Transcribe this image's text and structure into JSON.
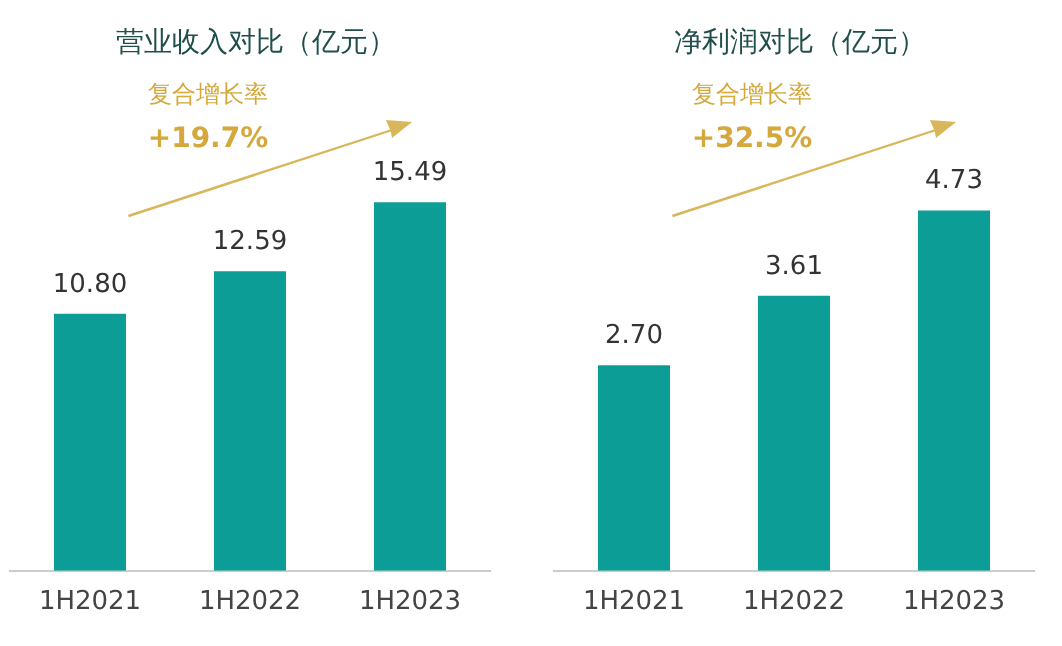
{
  "chart_data": [
    {
      "type": "bar",
      "title": "营业收入对比（亿元）",
      "annotations": [
        "复合增长率",
        "+19.7%"
      ],
      "categories": [
        "1H2021",
        "1H2022",
        "1H2023"
      ],
      "values": [
        10.8,
        12.59,
        15.49
      ],
      "value_labels": [
        "10.80",
        "12.59",
        "15.49"
      ],
      "color": "#0c9e96",
      "grid": false,
      "legend": false,
      "tick_labels": "x"
    },
    {
      "type": "bar",
      "title": "净利润对比（亿元）",
      "annotations": [
        "复合增长率",
        "+32.5%"
      ],
      "categories": [
        "1H2021",
        "1H2022",
        "1H2023"
      ],
      "values": [
        2.7,
        3.61,
        4.73
      ],
      "value_labels": [
        "2.70",
        "3.61",
        "4.73"
      ],
      "color": "#0c9e96",
      "grid": false,
      "legend": false,
      "tick_labels": "x"
    }
  ]
}
